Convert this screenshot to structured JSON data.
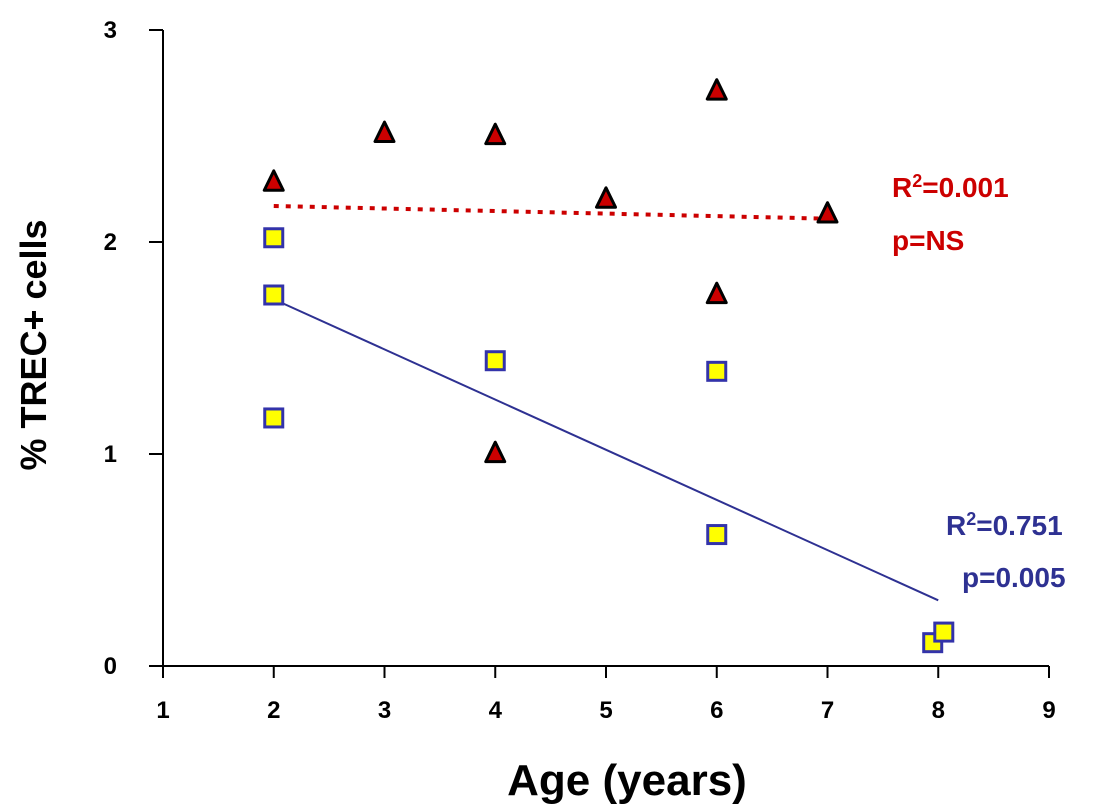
{
  "chart_data": {
    "type": "scatter",
    "xlabel": "Age (years)",
    "ylabel": "% TREC+ cells",
    "xlim": [
      1,
      9
    ],
    "ylim": [
      0,
      3
    ],
    "x_ticks": [
      "1",
      "2",
      "3",
      "4",
      "5",
      "6",
      "7",
      "8",
      "9"
    ],
    "y_ticks": [
      "0",
      "1",
      "2",
      "3"
    ],
    "grid": false,
    "series": [
      {
        "marker": "triangle",
        "color": "#cc0000",
        "points": [
          [
            2,
            2.28
          ],
          [
            3,
            2.51
          ],
          [
            4,
            2.5
          ],
          [
            4,
            1.0
          ],
          [
            5,
            2.2
          ],
          [
            6,
            2.71
          ],
          [
            6,
            1.75
          ],
          [
            7,
            2.13
          ]
        ],
        "trendline": {
          "style": "dotted",
          "color": "#cc0000",
          "from": [
            2,
            2.17
          ],
          "to": [
            7,
            2.11
          ]
        },
        "annotation": {
          "r2_prefix": "R",
          "r2_sup": "2",
          "r2_value": "=0.001",
          "p": "p=NS",
          "color": "#cc0000"
        }
      },
      {
        "marker": "square",
        "color": "#ffff00",
        "edge": "#3333aa",
        "points": [
          [
            2,
            2.02
          ],
          [
            2,
            1.75
          ],
          [
            2,
            1.17
          ],
          [
            4,
            1.44
          ],
          [
            6,
            1.39
          ],
          [
            6,
            0.62
          ],
          [
            7.95,
            0.11
          ],
          [
            8.05,
            0.16
          ]
        ],
        "trendline": {
          "style": "solid",
          "color": "#2e3192",
          "from": [
            2,
            1.73
          ],
          "to": [
            8,
            0.31
          ]
        },
        "annotation": {
          "r2_prefix": "R",
          "r2_sup": "2",
          "r2_value": "=0.751",
          "p": "p=0.005",
          "color": "#2e3192"
        }
      }
    ]
  }
}
